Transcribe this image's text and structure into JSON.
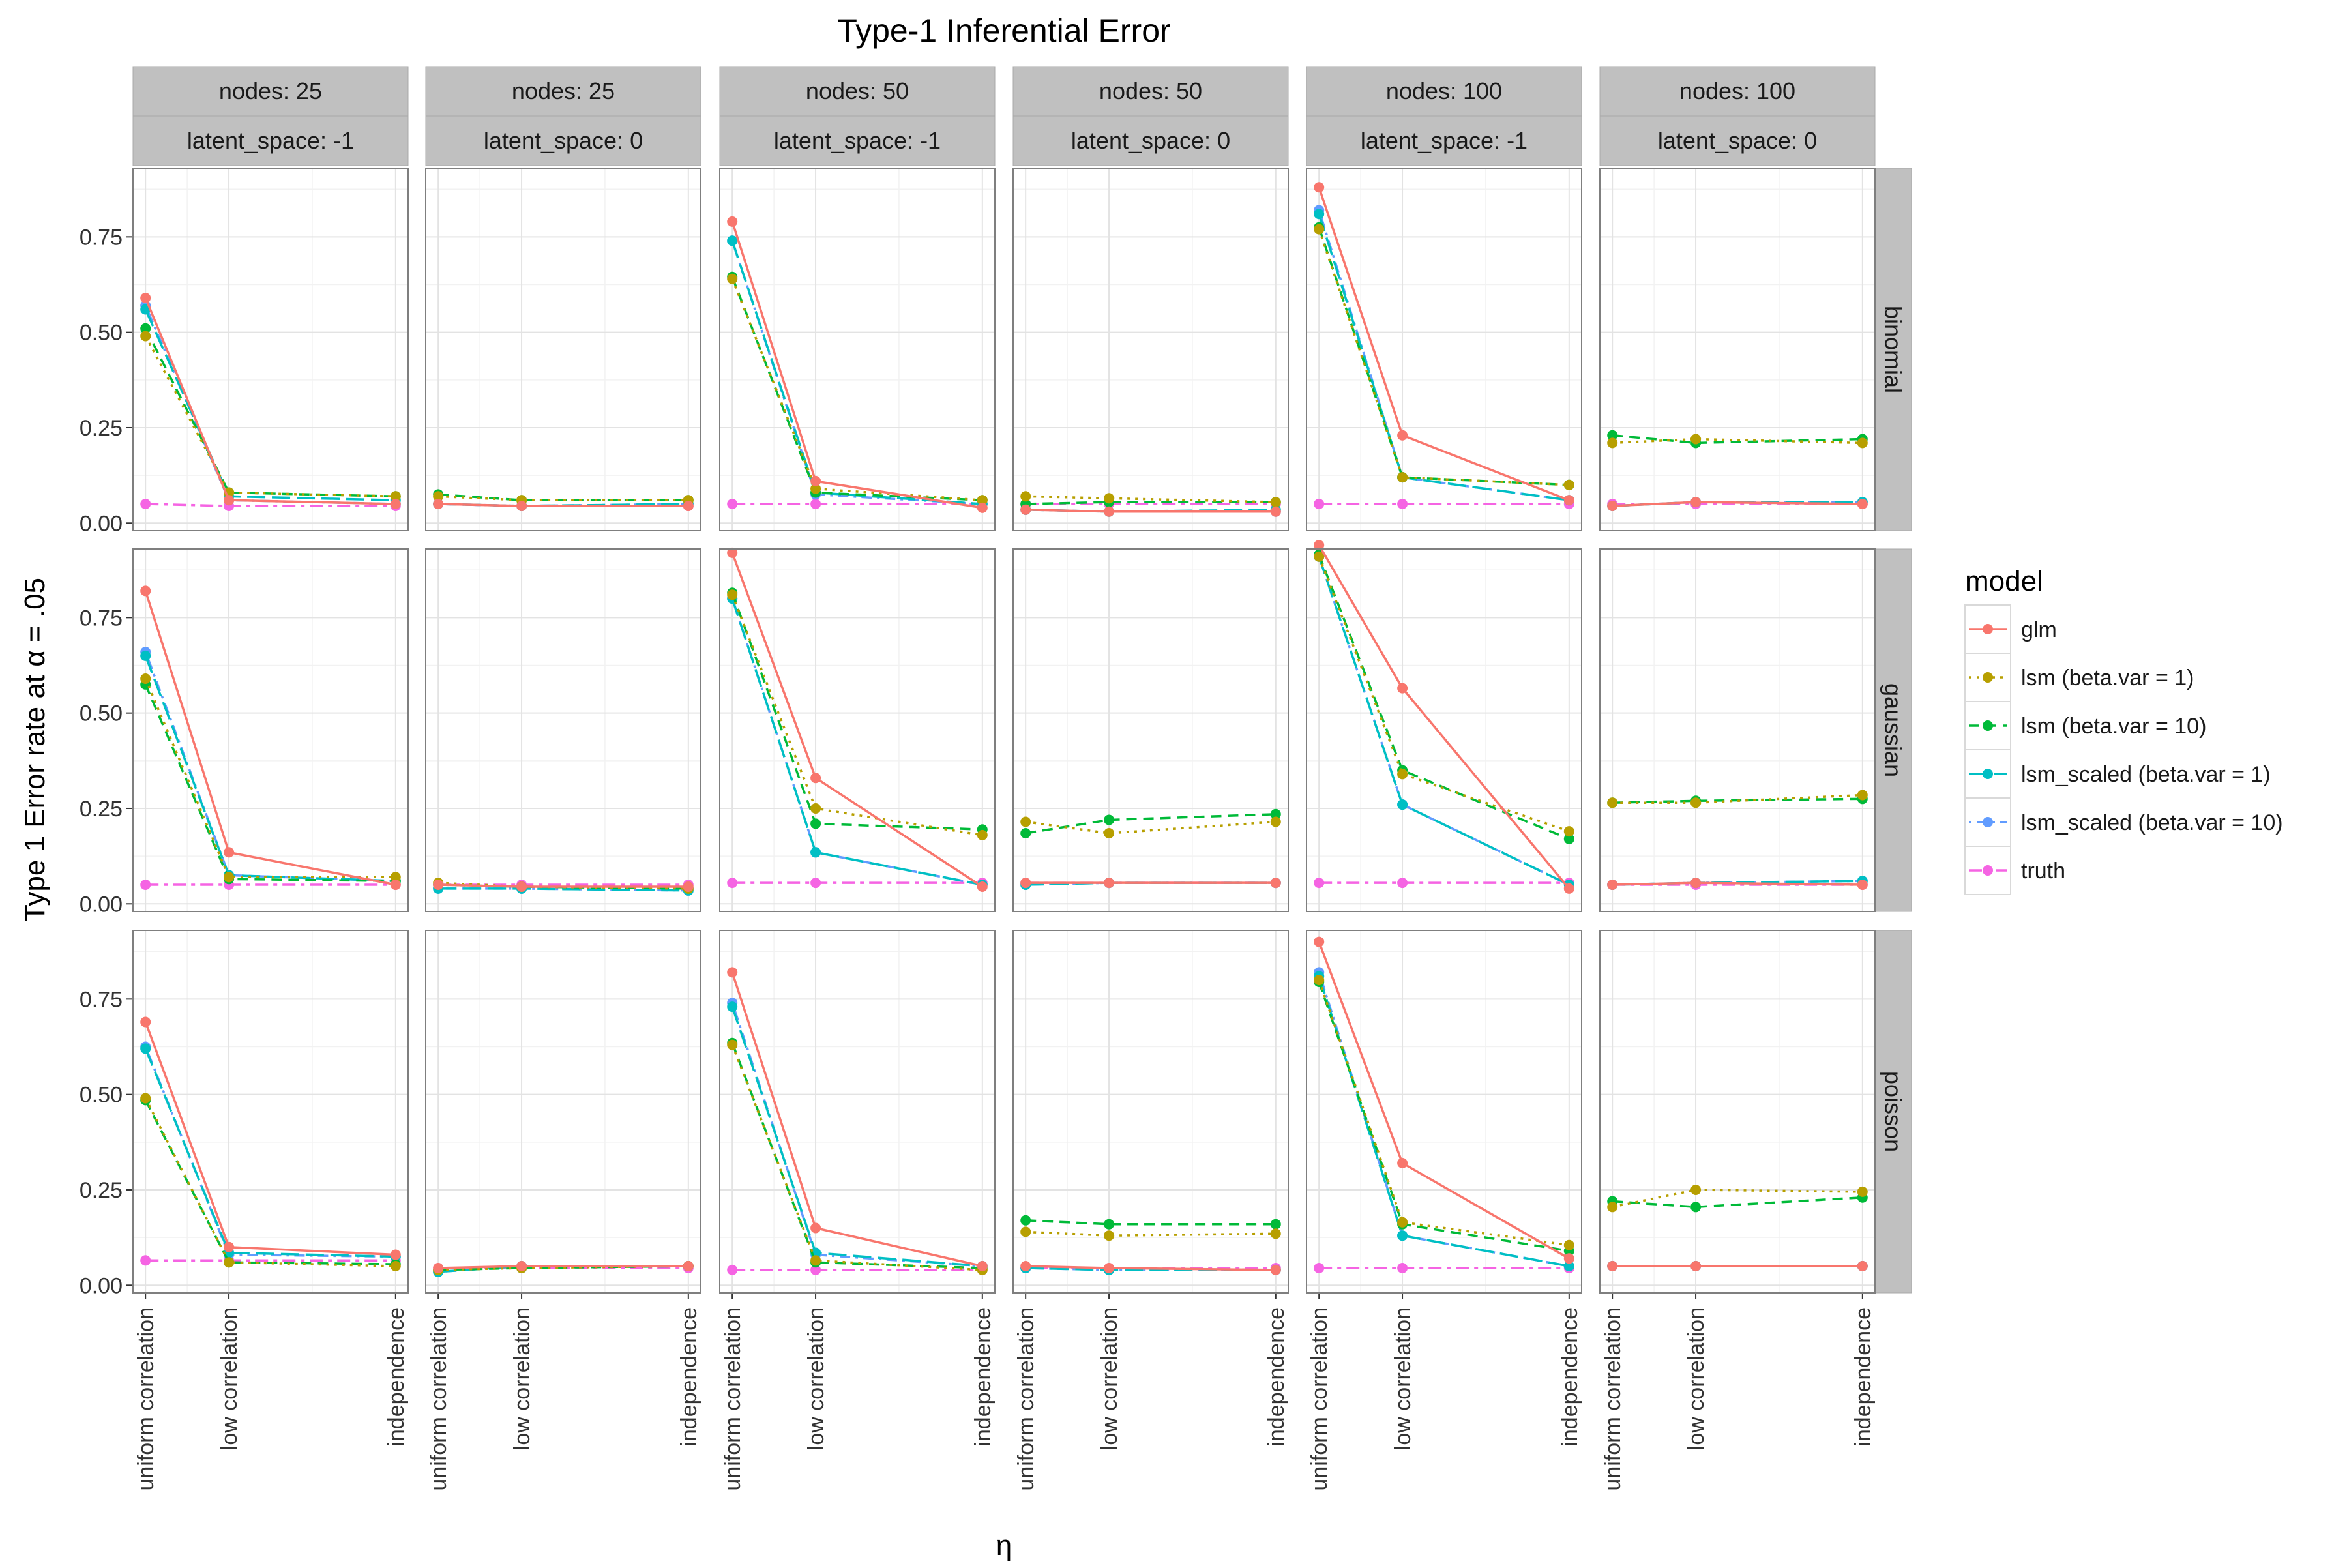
{
  "chart_data": {
    "type": "line",
    "title": "Type-1 Inferential Error",
    "ylabel": "Type 1 Error rate at α = .05",
    "xlabel": "η",
    "categories": [
      "uniform correlation",
      "low correlation",
      "independence"
    ],
    "x_positions": [
      0,
      1,
      3
    ],
    "ylim": [
      -0.02,
      0.93
    ],
    "yticks": [
      "0.00",
      "0.25",
      "0.50",
      "0.75"
    ],
    "ytick_values": [
      0,
      0.25,
      0.5,
      0.75
    ],
    "grid": true,
    "legend": {
      "title": "model",
      "placement": "right",
      "entries": [
        "glm",
        "lsm (beta.var = 1)",
        "lsm (beta.var = 10)",
        "lsm_scaled (beta.var = 1)",
        "lsm_scaled (beta.var = 10)",
        "truth"
      ]
    },
    "series_styles": [
      {
        "name": "glm",
        "color": "#F8766D",
        "dash": "solid"
      },
      {
        "name": "lsm (beta.var = 1)",
        "color": "#B79F00",
        "dash": "dotted"
      },
      {
        "name": "lsm (beta.var = 10)",
        "color": "#00BA38",
        "dash": "dashed"
      },
      {
        "name": "lsm_scaled (beta.var = 1)",
        "color": "#00BFC4",
        "dash": "longdash"
      },
      {
        "name": "lsm_scaled (beta.var = 10)",
        "color": "#619CFF",
        "dash": "dotdash"
      },
      {
        "name": "truth",
        "color": "#F564E3",
        "dash": "twodash"
      }
    ],
    "col_strips": [
      {
        "nodes": "nodes: 25",
        "latent": "latent_space: -1"
      },
      {
        "nodes": "nodes: 25",
        "latent": "latent_space: 0"
      },
      {
        "nodes": "nodes: 50",
        "latent": "latent_space: -1"
      },
      {
        "nodes": "nodes: 50",
        "latent": "latent_space: 0"
      },
      {
        "nodes": "nodes: 100",
        "latent": "latent_space: -1"
      },
      {
        "nodes": "nodes: 100",
        "latent": "latent_space: 0"
      }
    ],
    "row_strips": [
      "binomial",
      "gaussian",
      "poisson"
    ],
    "panels": [
      [
        [
          [
            0.59,
            0.06,
            0.05
          ],
          [
            0.49,
            0.08,
            0.07
          ],
          [
            0.51,
            0.08,
            0.07
          ],
          [
            0.56,
            0.07,
            0.06
          ],
          [
            0.57,
            0.06,
            0.05
          ],
          [
            0.05,
            0.045,
            0.045
          ]
        ],
        [
          [
            0.05,
            0.045,
            0.045
          ],
          [
            0.07,
            0.06,
            0.06
          ],
          [
            0.075,
            0.06,
            0.06
          ],
          [
            0.05,
            0.045,
            0.05
          ],
          [
            0.05,
            0.045,
            0.05
          ],
          [
            0.05,
            0.045,
            0.045
          ]
        ],
        [
          [
            0.79,
            0.11,
            0.04
          ],
          [
            0.64,
            0.09,
            0.06
          ],
          [
            0.645,
            0.08,
            0.06
          ],
          [
            0.74,
            0.08,
            0.05
          ],
          [
            0.74,
            0.075,
            0.05
          ],
          [
            0.05,
            0.05,
            0.05
          ]
        ],
        [
          [
            0.035,
            0.03,
            0.03
          ],
          [
            0.07,
            0.065,
            0.055
          ],
          [
            0.05,
            0.055,
            0.055
          ],
          [
            0.035,
            0.03,
            0.035
          ],
          [
            0.035,
            0.03,
            0.03
          ],
          [
            0.05,
            0.05,
            0.05
          ]
        ],
        [
          [
            0.88,
            0.23,
            0.06
          ],
          [
            0.77,
            0.12,
            0.1
          ],
          [
            0.775,
            0.12,
            0.1
          ],
          [
            0.81,
            0.12,
            0.06
          ],
          [
            0.82,
            0.12,
            0.06
          ],
          [
            0.05,
            0.05,
            0.05
          ]
        ],
        [
          [
            0.045,
            0.055,
            0.05
          ],
          [
            0.21,
            0.22,
            0.21
          ],
          [
            0.23,
            0.21,
            0.22
          ],
          [
            0.045,
            0.055,
            0.055
          ],
          [
            0.045,
            0.055,
            0.055
          ],
          [
            0.05,
            0.05,
            0.05
          ]
        ]
      ],
      [
        [
          [
            0.82,
            0.135,
            0.05
          ],
          [
            0.59,
            0.07,
            0.07
          ],
          [
            0.575,
            0.065,
            0.06
          ],
          [
            0.65,
            0.075,
            0.06
          ],
          [
            0.66,
            0.075,
            0.06
          ],
          [
            0.05,
            0.05,
            0.05
          ]
        ],
        [
          [
            0.05,
            0.045,
            0.045
          ],
          [
            0.055,
            0.045,
            0.04
          ],
          [
            0.05,
            0.045,
            0.04
          ],
          [
            0.04,
            0.04,
            0.035
          ],
          [
            0.04,
            0.04,
            0.035
          ],
          [
            0.05,
            0.05,
            0.05
          ]
        ],
        [
          [
            0.92,
            0.33,
            0.045
          ],
          [
            0.81,
            0.25,
            0.18
          ],
          [
            0.815,
            0.21,
            0.195
          ],
          [
            0.8,
            0.135,
            0.05
          ],
          [
            0.8,
            0.135,
            0.05
          ],
          [
            0.055,
            0.055,
            0.055
          ]
        ],
        [
          [
            0.055,
            0.055,
            0.055
          ],
          [
            0.215,
            0.185,
            0.215
          ],
          [
            0.185,
            0.22,
            0.235
          ],
          [
            0.05,
            0.055,
            0.055
          ],
          [
            0.05,
            0.055,
            0.055
          ],
          [
            0.055,
            0.055,
            0.055
          ]
        ],
        [
          [
            0.94,
            0.565,
            0.04
          ],
          [
            0.91,
            0.34,
            0.19
          ],
          [
            0.915,
            0.35,
            0.17
          ],
          [
            0.91,
            0.26,
            0.05
          ],
          [
            0.91,
            0.26,
            0.05
          ],
          [
            0.055,
            0.055,
            0.055
          ]
        ],
        [
          [
            0.05,
            0.055,
            0.05
          ],
          [
            0.265,
            0.265,
            0.285
          ],
          [
            0.265,
            0.27,
            0.275
          ],
          [
            0.05,
            0.055,
            0.06
          ],
          [
            0.05,
            0.055,
            0.06
          ],
          [
            0.05,
            0.05,
            0.05
          ]
        ]
      ],
      [
        [
          [
            0.69,
            0.1,
            0.08
          ],
          [
            0.49,
            0.06,
            0.05
          ],
          [
            0.485,
            0.06,
            0.055
          ],
          [
            0.62,
            0.085,
            0.075
          ],
          [
            0.625,
            0.08,
            0.075
          ],
          [
            0.065,
            0.065,
            0.065
          ]
        ],
        [
          [
            0.045,
            0.05,
            0.05
          ],
          [
            0.04,
            0.045,
            0.05
          ],
          [
            0.04,
            0.045,
            0.05
          ],
          [
            0.035,
            0.05,
            0.05
          ],
          [
            0.035,
            0.05,
            0.05
          ],
          [
            0.045,
            0.045,
            0.045
          ]
        ],
        [
          [
            0.82,
            0.15,
            0.05
          ],
          [
            0.63,
            0.065,
            0.04
          ],
          [
            0.635,
            0.06,
            0.045
          ],
          [
            0.73,
            0.085,
            0.05
          ],
          [
            0.74,
            0.08,
            0.05
          ],
          [
            0.04,
            0.04,
            0.04
          ]
        ],
        [
          [
            0.05,
            0.045,
            0.04
          ],
          [
            0.14,
            0.13,
            0.135
          ],
          [
            0.17,
            0.16,
            0.16
          ],
          [
            0.045,
            0.04,
            0.04
          ],
          [
            0.045,
            0.04,
            0.04
          ],
          [
            0.045,
            0.045,
            0.045
          ]
        ],
        [
          [
            0.9,
            0.32,
            0.07
          ],
          [
            0.8,
            0.165,
            0.105
          ],
          [
            0.795,
            0.16,
            0.09
          ],
          [
            0.81,
            0.13,
            0.05
          ],
          [
            0.82,
            0.13,
            0.05
          ],
          [
            0.045,
            0.045,
            0.045
          ]
        ],
        [
          [
            0.05,
            0.05,
            0.05
          ],
          [
            0.205,
            0.25,
            0.245
          ],
          [
            0.22,
            0.205,
            0.23
          ],
          [
            0.05,
            0.05,
            0.05
          ],
          [
            0.05,
            0.05,
            0.05
          ],
          [
            0.05,
            0.05,
            0.05
          ]
        ]
      ]
    ]
  }
}
